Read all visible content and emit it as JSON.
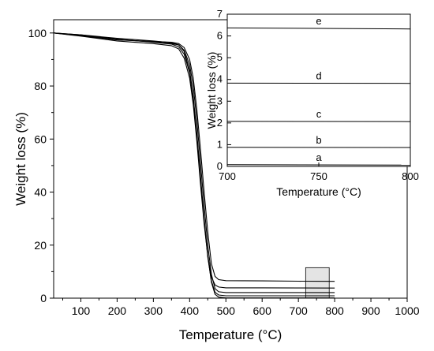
{
  "chart_data": [
    {
      "type": "line",
      "xlabel": "Temperature (°C)",
      "ylabel": "Weight loss (%)",
      "xlim": [
        25,
        1000
      ],
      "ylim": [
        0,
        105
      ],
      "xticks": [
        100,
        200,
        300,
        400,
        500,
        600,
        700,
        800,
        900,
        1000
      ],
      "yticks": [
        0,
        20,
        40,
        60,
        80,
        100
      ],
      "grid": false,
      "highlight_region": {
        "x": [
          720,
          785
        ],
        "y": [
          0,
          11.5
        ]
      },
      "series": [
        {
          "x": [
            25,
            100,
            200,
            300,
            350,
            370,
            385,
            400,
            410,
            420,
            430,
            440,
            450,
            460,
            470,
            480,
            500,
            600,
            700,
            800
          ],
          "y": [
            100,
            99.3,
            98.0,
            97.0,
            96.3,
            95.5,
            93.0,
            86.0,
            76.0,
            62.0,
            46.0,
            30.0,
            16.0,
            6.0,
            1.5,
            0.4,
            0.1,
            0.1,
            0.1,
            0.1
          ]
        },
        {
          "x": [
            25,
            100,
            200,
            300,
            350,
            370,
            385,
            400,
            410,
            420,
            430,
            440,
            450,
            460,
            470,
            480,
            500,
            600,
            700,
            800
          ],
          "y": [
            100,
            99.3,
            97.7,
            96.5,
            95.8,
            94.8,
            92.0,
            85.0,
            75.0,
            61.0,
            45.0,
            29.0,
            15.5,
            6.5,
            2.2,
            1.2,
            0.9,
            0.9,
            0.9,
            0.9
          ]
        },
        {
          "x": [
            25,
            100,
            200,
            300,
            350,
            370,
            385,
            400,
            410,
            420,
            430,
            440,
            450,
            460,
            470,
            480,
            500,
            600,
            700,
            800
          ],
          "y": [
            100,
            99.1,
            97.5,
            96.6,
            96.0,
            95.5,
            93.5,
            88.0,
            80.0,
            67.0,
            51.0,
            35.0,
            20.0,
            9.0,
            3.6,
            2.4,
            2.1,
            2.1,
            2.1,
            2.1
          ]
        },
        {
          "x": [
            25,
            100,
            200,
            300,
            350,
            370,
            385,
            400,
            410,
            420,
            430,
            440,
            450,
            460,
            470,
            480,
            500,
            600,
            700,
            800
          ],
          "y": [
            100,
            98.8,
            97.0,
            96.0,
            95.2,
            94.0,
            90.5,
            83.0,
            73.0,
            59.0,
            43.0,
            28.0,
            16.0,
            8.0,
            5.0,
            4.2,
            3.9,
            3.9,
            3.85,
            3.8
          ]
        },
        {
          "x": [
            25,
            100,
            200,
            300,
            350,
            370,
            385,
            400,
            410,
            420,
            430,
            440,
            450,
            460,
            470,
            480,
            500,
            600,
            700,
            800
          ],
          "y": [
            100,
            98.9,
            97.4,
            96.8,
            96.5,
            96.0,
            94.5,
            90.0,
            83.0,
            71.0,
            56.0,
            40.0,
            25.0,
            13.0,
            8.2,
            7.0,
            6.6,
            6.5,
            6.4,
            6.35
          ]
        }
      ]
    },
    {
      "type": "line",
      "xlabel": "Temperature (°C)",
      "ylabel": "Weight loss (%)",
      "xlim": [
        700,
        800
      ],
      "ylim": [
        0,
        7
      ],
      "xticks": [
        700,
        750,
        800
      ],
      "yticks": [
        0,
        1,
        2,
        3,
        4,
        5,
        6,
        7
      ],
      "grid": false,
      "series": [
        {
          "name": "a",
          "x": [
            700,
            800
          ],
          "y": [
            0.08,
            0.06
          ]
        },
        {
          "name": "b",
          "x": [
            700,
            800
          ],
          "y": [
            0.88,
            0.87
          ]
        },
        {
          "name": "c",
          "x": [
            700,
            800
          ],
          "y": [
            2.07,
            2.06
          ]
        },
        {
          "name": "d",
          "x": [
            700,
            800
          ],
          "y": [
            3.83,
            3.82
          ]
        },
        {
          "name": "e",
          "x": [
            700,
            800
          ],
          "y": [
            6.37,
            6.32
          ]
        }
      ]
    }
  ]
}
